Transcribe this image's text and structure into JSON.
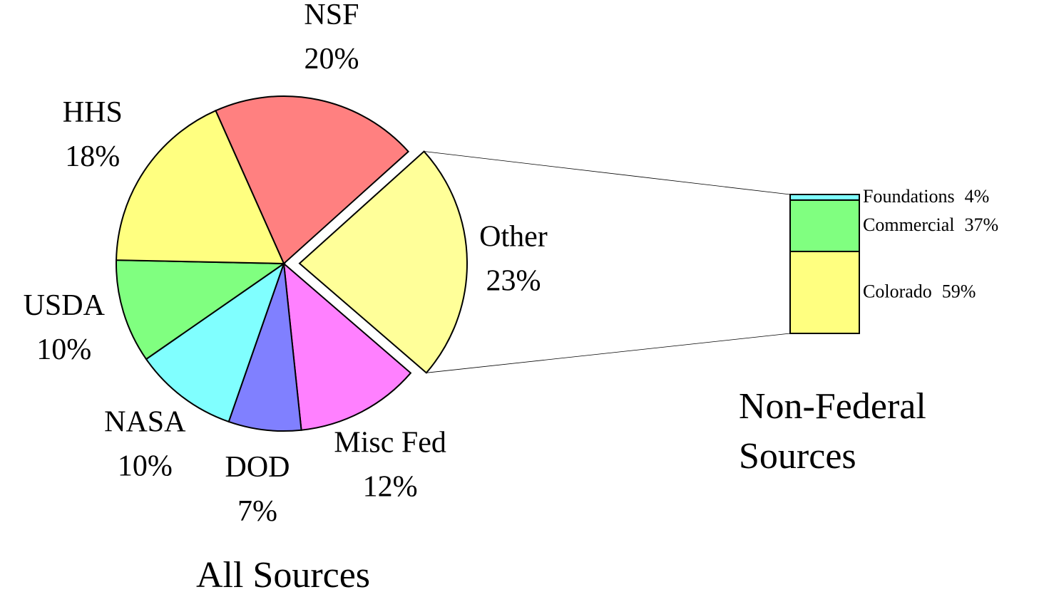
{
  "chart_data": [
    {
      "type": "pie",
      "title": "All Sources",
      "categories": [
        "NSF",
        "Other",
        "Misc Fed",
        "DOD",
        "NASA",
        "USDA",
        "HHS"
      ],
      "values": [
        20,
        23,
        12,
        7,
        10,
        10,
        18
      ],
      "value_labels": [
        "20%",
        "23%",
        "12%",
        "7%",
        "10%",
        "10%",
        "18%"
      ],
      "colors": [
        "#ff8080",
        "#ffff99",
        "#ff80ff",
        "#8080ff",
        "#80ffff",
        "#80ff80",
        "#ffff80"
      ],
      "exploded": "Other"
    },
    {
      "type": "stacked-bar",
      "title": "Non-Federal Sources",
      "categories": [
        "Foundations",
        "Commercial",
        "Colorado"
      ],
      "values": [
        4,
        37,
        59
      ],
      "value_labels": [
        "4%",
        "37%",
        "59%"
      ],
      "colors": [
        "#80ffff",
        "#80ff80",
        "#ffff80"
      ]
    }
  ]
}
